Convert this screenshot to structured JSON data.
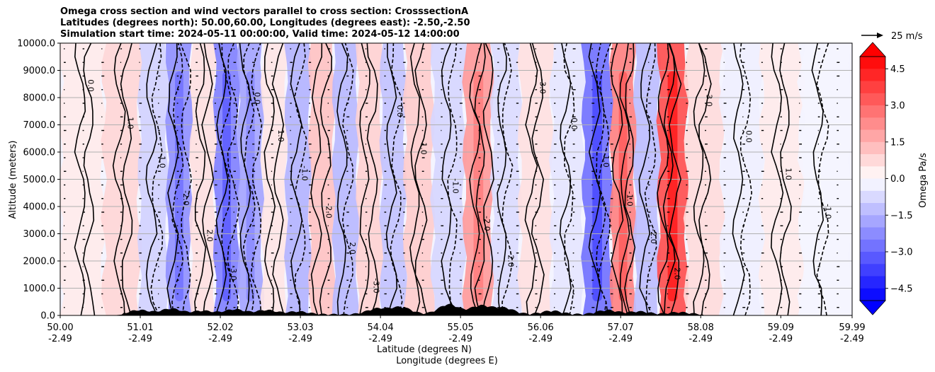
{
  "title": {
    "line1": "Omega cross section and wind vectors parallel to cross section: CrosssectionA",
    "line2": "Latitudes (degrees north): 50.00,60.00, Longitudes (degrees east): -2.50,-2.50",
    "line3": "Simulation start time: 2024-05-11 00:00:00, Valid time: 2024-05-12 14:00:00"
  },
  "chart_data": {
    "type": "heatmap",
    "xlabel_1": "Latitude (degrees N)",
    "xlabel_2": "Longitude (degrees E)",
    "ylabel": "Altitude (meters)",
    "colorbar_label": "Omega Pa/s",
    "quiver_key_label": "25 m/s",
    "ylim": [
      0,
      10000
    ],
    "yticks": [
      "0.0",
      "1000.0",
      "2000.0",
      "3000.0",
      "4000.0",
      "5000.0",
      "6000.0",
      "7000.0",
      "8000.0",
      "9000.0",
      "10000.0"
    ],
    "xticks": [
      {
        "lat": "50.00",
        "lon": "-2.49"
      },
      {
        "lat": "51.01",
        "lon": "-2.49"
      },
      {
        "lat": "52.02",
        "lon": "-2.49"
      },
      {
        "lat": "53.03",
        "lon": "-2.49"
      },
      {
        "lat": "54.04",
        "lon": "-2.49"
      },
      {
        "lat": "55.05",
        "lon": "-2.49"
      },
      {
        "lat": "56.06",
        "lon": "-2.49"
      },
      {
        "lat": "57.07",
        "lon": "-2.49"
      },
      {
        "lat": "58.08",
        "lon": "-2.49"
      },
      {
        "lat": "59.09",
        "lon": "-2.49"
      },
      {
        "lat": "59.99",
        "lon": "-2.49"
      }
    ],
    "colorbar_range": [
      -5,
      5
    ],
    "colorbar_ticks": [
      "4.5",
      "3.0",
      "1.5",
      "0.0",
      "−1.5",
      "−3.0",
      "−4.5"
    ],
    "colorbar_tick_values": [
      4.5,
      3.0,
      1.5,
      0.0,
      -1.5,
      -3.0,
      -4.5
    ],
    "grid": true,
    "omega_columns": [
      {
        "lat": 50.3,
        "omega": 0.4
      },
      {
        "lat": 50.8,
        "omega": 0.8
      },
      {
        "lat": 51.2,
        "omega": -0.9
      },
      {
        "lat": 51.5,
        "omega": -2.2
      },
      {
        "lat": 51.8,
        "omega": 0.6
      },
      {
        "lat": 52.1,
        "omega": -2.5
      },
      {
        "lat": 52.4,
        "omega": -1.8
      },
      {
        "lat": 52.7,
        "omega": 0.5
      },
      {
        "lat": 53.0,
        "omega": -1.5
      },
      {
        "lat": 53.3,
        "omega": 1.2
      },
      {
        "lat": 53.6,
        "omega": -1.4
      },
      {
        "lat": 53.9,
        "omega": 0.9
      },
      {
        "lat": 54.2,
        "omega": -1.2
      },
      {
        "lat": 54.5,
        "omega": 1.0
      },
      {
        "lat": 54.9,
        "omega": -0.8
      },
      {
        "lat": 55.3,
        "omega": 2.0
      },
      {
        "lat": 55.6,
        "omega": -0.7
      },
      {
        "lat": 56.0,
        "omega": 0.6
      },
      {
        "lat": 56.4,
        "omega": -0.5
      },
      {
        "lat": 56.8,
        "omega": -2.8
      },
      {
        "lat": 57.1,
        "omega": 2.5
      },
      {
        "lat": 57.4,
        "omega": -1.3
      },
      {
        "lat": 57.7,
        "omega": 3.5
      },
      {
        "lat": 58.1,
        "omega": 0.7
      },
      {
        "lat": 58.6,
        "omega": -0.3
      },
      {
        "lat": 59.1,
        "omega": 0.4
      },
      {
        "lat": 59.6,
        "omega": -0.2
      }
    ],
    "contour_labels": [
      "0.0",
      "1.0",
      "-1.0",
      "-2.0",
      "2.0",
      "-3.0"
    ],
    "vector_color": "#000000"
  }
}
